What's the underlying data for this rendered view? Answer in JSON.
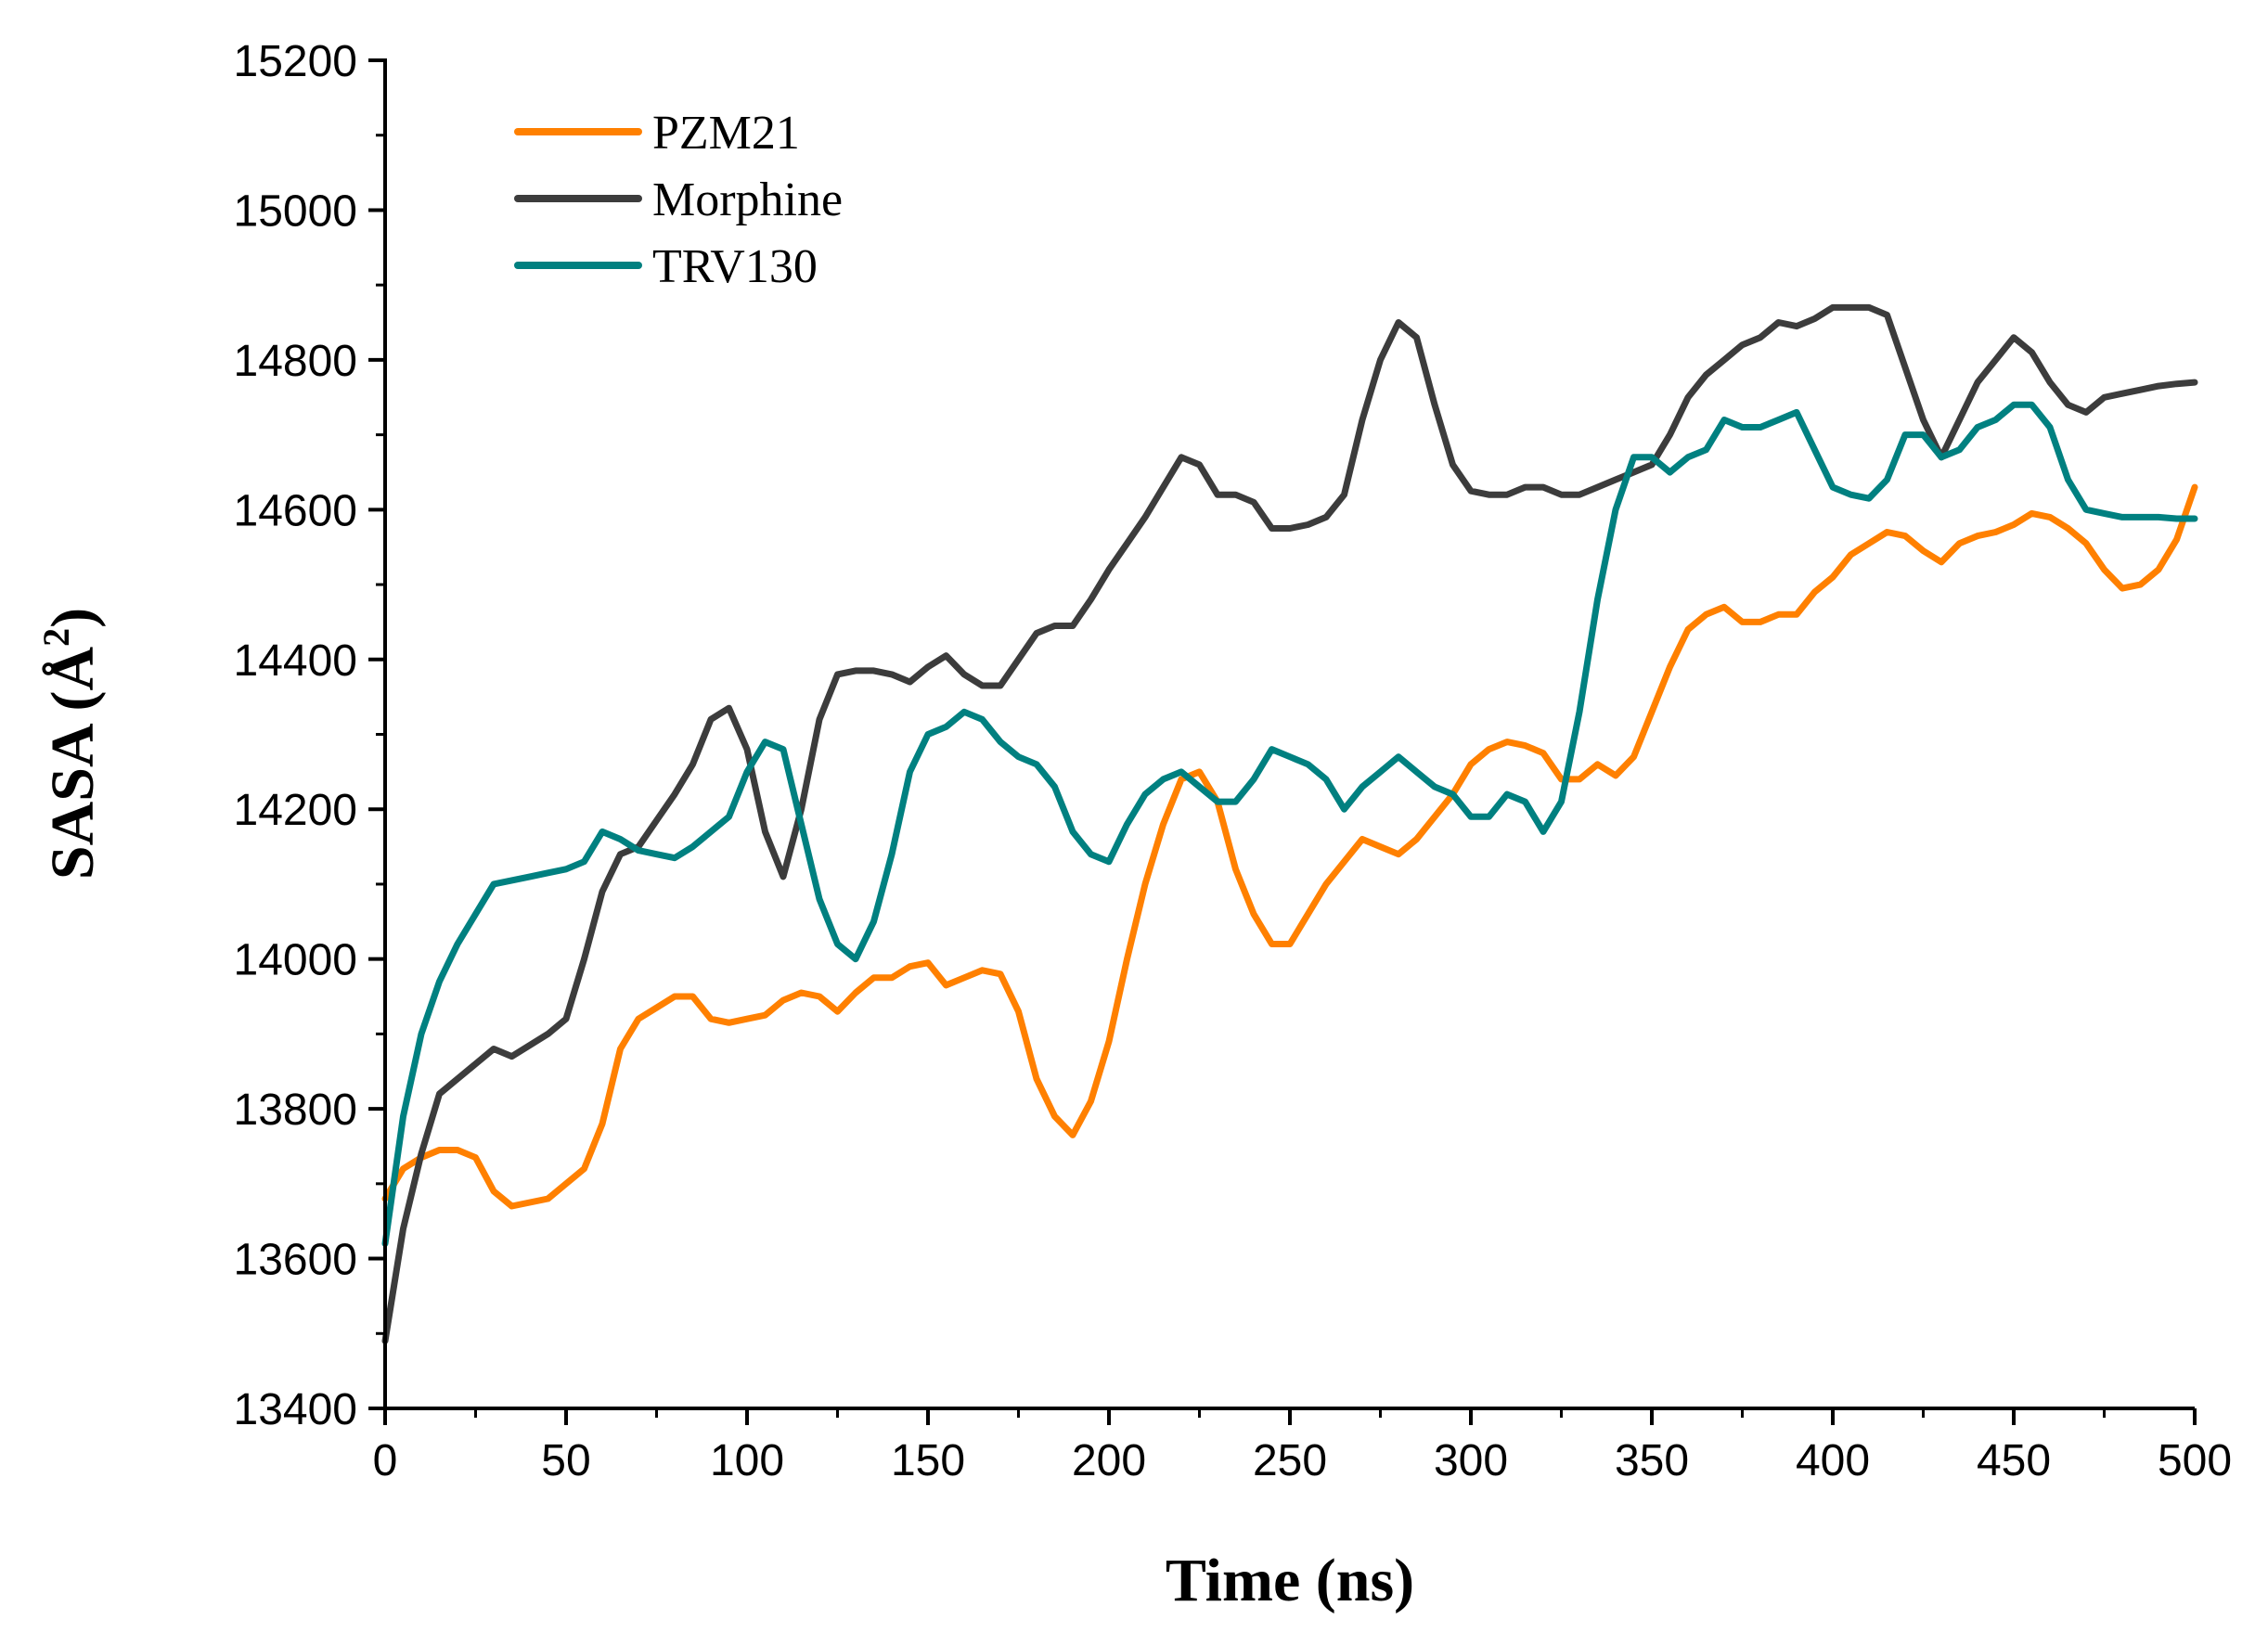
{
  "chart_data": {
    "type": "line",
    "title": "",
    "xlabel": "Time (ns)",
    "ylabel_main": "SASA (Å",
    "ylabel_sup": "2",
    "ylabel_close": ")",
    "xlim": [
      0,
      500
    ],
    "ylim": [
      13400,
      15200
    ],
    "xticks": [
      0,
      50,
      100,
      150,
      200,
      250,
      300,
      350,
      400,
      450,
      500
    ],
    "yticks": [
      13400,
      13600,
      13800,
      14000,
      14200,
      14400,
      14600,
      14800,
      15000,
      15200
    ],
    "grid": false,
    "legend_position": "top-left",
    "series": [
      {
        "name": "PZM21",
        "color": "#FF8000",
        "x": [
          0,
          5,
          10,
          15,
          20,
          25,
          30,
          35,
          40,
          45,
          50,
          55,
          60,
          65,
          70,
          75,
          80,
          85,
          90,
          95,
          100,
          105,
          110,
          115,
          120,
          125,
          130,
          135,
          140,
          145,
          150,
          155,
          160,
          165,
          170,
          175,
          180,
          185,
          190,
          195,
          200,
          205,
          210,
          215,
          220,
          225,
          230,
          235,
          240,
          245,
          250,
          255,
          260,
          265,
          270,
          275,
          280,
          285,
          290,
          295,
          300,
          305,
          310,
          315,
          320,
          325,
          330,
          335,
          340,
          345,
          350,
          355,
          360,
          365,
          370,
          375,
          380,
          385,
          390,
          395,
          400,
          405,
          410,
          415,
          420,
          425,
          430,
          435,
          440,
          445,
          450,
          455,
          460,
          465,
          470,
          475,
          480,
          485,
          490,
          495,
          500
        ],
        "y": [
          13680,
          13720,
          13735,
          13745,
          13745,
          13735,
          13690,
          13670,
          13675,
          13680,
          13700,
          13720,
          13780,
          13880,
          13920,
          13935,
          13950,
          13950,
          13920,
          13915,
          13920,
          13925,
          13945,
          13955,
          13950,
          13930,
          13955,
          13975,
          13975,
          13990,
          13995,
          13965,
          13975,
          13985,
          13980,
          13930,
          13840,
          13790,
          13765,
          13810,
          13890,
          14000,
          14100,
          14180,
          14240,
          14250,
          14210,
          14120,
          14060,
          14020,
          14020,
          14060,
          14100,
          14130,
          14160,
          14150,
          14140,
          14160,
          14190,
          14220,
          14260,
          14280,
          14290,
          14285,
          14275,
          14240,
          14240,
          14260,
          14245,
          14270,
          14330,
          14390,
          14440,
          14460,
          14470,
          14450,
          14450,
          14460,
          14460,
          14490,
          14510,
          14540,
          14555,
          14570,
          14565,
          14545,
          14530,
          14555,
          14565,
          14570,
          14580,
          14595,
          14590,
          14575,
          14555,
          14520,
          14495,
          14500,
          14520,
          14560,
          14630
        ]
      },
      {
        "name": "Morphine",
        "color": "#3C3C3C",
        "x": [
          0,
          5,
          10,
          15,
          20,
          25,
          30,
          35,
          40,
          45,
          50,
          55,
          60,
          65,
          70,
          75,
          80,
          85,
          90,
          95,
          100,
          105,
          110,
          115,
          120,
          125,
          130,
          135,
          140,
          145,
          150,
          155,
          160,
          165,
          170,
          175,
          180,
          185,
          190,
          195,
          200,
          205,
          210,
          215,
          220,
          225,
          230,
          235,
          240,
          245,
          250,
          255,
          260,
          265,
          270,
          275,
          280,
          285,
          290,
          295,
          300,
          305,
          310,
          315,
          320,
          325,
          330,
          335,
          340,
          345,
          350,
          355,
          360,
          365,
          370,
          375,
          380,
          385,
          390,
          395,
          400,
          405,
          410,
          415,
          420,
          425,
          430,
          435,
          440,
          445,
          450,
          455,
          460,
          465,
          470,
          475,
          480,
          485,
          490,
          495,
          500
        ],
        "y": [
          13490,
          13640,
          13740,
          13820,
          13840,
          13860,
          13880,
          13870,
          13885,
          13900,
          13920,
          14000,
          14090,
          14140,
          14150,
          14185,
          14220,
          14260,
          14320,
          14335,
          14280,
          14170,
          14110,
          14200,
          14320,
          14380,
          14385,
          14385,
          14380,
          14370,
          14390,
          14405,
          14380,
          14365,
          14365,
          14400,
          14435,
          14445,
          14445,
          14480,
          14520,
          14555,
          14590,
          14630,
          14670,
          14660,
          14620,
          14620,
          14610,
          14575,
          14575,
          14580,
          14590,
          14620,
          14720,
          14800,
          14850,
          14830,
          14740,
          14660,
          14625,
          14620,
          14620,
          14630,
          14630,
          14620,
          14620,
          14630,
          14640,
          14650,
          14660,
          14700,
          14750,
          14780,
          14800,
          14820,
          14830,
          14850,
          14845,
          14855,
          14870,
          14870,
          14870,
          14860,
          14790,
          14720,
          14670,
          14720,
          14770,
          14800,
          14830,
          14810,
          14770,
          14740,
          14730,
          14750,
          14755,
          14760,
          14765,
          14768,
          14770
        ]
      },
      {
        "name": "TRV130",
        "color": "#008080",
        "x": [
          0,
          5,
          10,
          15,
          20,
          25,
          30,
          35,
          40,
          45,
          50,
          55,
          60,
          65,
          70,
          75,
          80,
          85,
          90,
          95,
          100,
          105,
          110,
          115,
          120,
          125,
          130,
          135,
          140,
          145,
          150,
          155,
          160,
          165,
          170,
          175,
          180,
          185,
          190,
          195,
          200,
          205,
          210,
          215,
          220,
          225,
          230,
          235,
          240,
          245,
          250,
          255,
          260,
          265,
          270,
          275,
          280,
          285,
          290,
          295,
          300,
          305,
          310,
          315,
          320,
          325,
          330,
          335,
          340,
          345,
          350,
          355,
          360,
          365,
          370,
          375,
          380,
          385,
          390,
          395,
          400,
          405,
          410,
          415,
          420,
          425,
          430,
          435,
          440,
          445,
          450,
          455,
          460,
          465,
          470,
          475,
          480,
          485,
          490,
          495,
          500
        ],
        "y": [
          13620,
          13790,
          13900,
          13970,
          14020,
          14060,
          14100,
          14105,
          14110,
          14115,
          14120,
          14130,
          14170,
          14160,
          14145,
          14140,
          14135,
          14150,
          14170,
          14190,
          14250,
          14290,
          14280,
          14180,
          14080,
          14020,
          14000,
          14050,
          14140,
          14250,
          14300,
          14310,
          14330,
          14320,
          14290,
          14270,
          14260,
          14230,
          14170,
          14140,
          14130,
          14180,
          14220,
          14240,
          14250,
          14230,
          14210,
          14210,
          14240,
          14280,
          14270,
          14260,
          14240,
          14200,
          14230,
          14250,
          14270,
          14250,
          14230,
          14220,
          14190,
          14190,
          14220,
          14210,
          14170,
          14210,
          14330,
          14480,
          14600,
          14670,
          14670,
          14650,
          14670,
          14680,
          14720,
          14710,
          14710,
          14720,
          14730,
          14680,
          14630,
          14620,
          14615,
          14640,
          14700,
          14700,
          14670,
          14680,
          14710,
          14720,
          14740,
          14740,
          14710,
          14640,
          14600,
          14595,
          14590,
          14590,
          14590,
          14588,
          14588
        ]
      }
    ]
  }
}
